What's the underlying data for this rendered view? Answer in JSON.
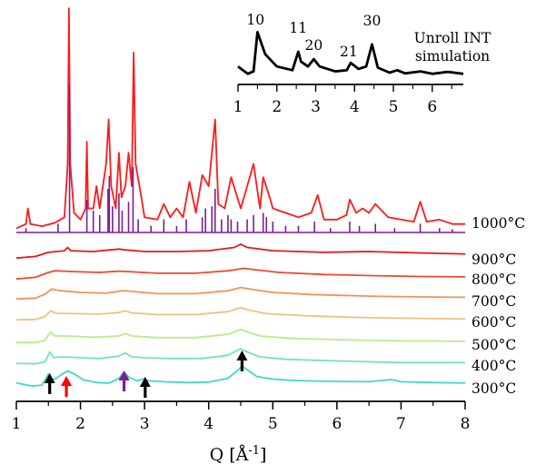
{
  "chart_data": {
    "type": "line",
    "xlabel_base": "Q [Å",
    "xlabel_sup": "-1",
    "xlabel_end": "]",
    "xlim": [
      1,
      8
    ],
    "xticks": [
      1,
      2,
      3,
      4,
      5,
      6,
      7,
      8
    ],
    "grid": false,
    "series": [
      {
        "name": "300°C",
        "color": "#3fd8c9",
        "points": [
          [
            1,
            0.55
          ],
          [
            1.25,
            0.2
          ],
          [
            1.4,
            0.3
          ],
          [
            1.5,
            1.6
          ],
          [
            1.56,
            0.9
          ],
          [
            1.62,
            1.1
          ],
          [
            1.72,
            1.6
          ],
          [
            1.8,
            1.95
          ],
          [
            1.9,
            1.6
          ],
          [
            2.05,
            0.9
          ],
          [
            2.25,
            0.6
          ],
          [
            2.45,
            0.55
          ],
          [
            2.6,
            1.1
          ],
          [
            2.68,
            1.8
          ],
          [
            2.76,
            1.2
          ],
          [
            2.88,
            0.8
          ],
          [
            3.0,
            1.05
          ],
          [
            3.05,
            0.8
          ],
          [
            3.3,
            0.7
          ],
          [
            3.7,
            0.6
          ],
          [
            4.0,
            0.65
          ],
          [
            4.3,
            1.1
          ],
          [
            4.45,
            2.0
          ],
          [
            4.52,
            2.5
          ],
          [
            4.6,
            2.1
          ],
          [
            4.75,
            1.3
          ],
          [
            5.0,
            1.0
          ],
          [
            5.3,
            0.85
          ],
          [
            5.8,
            0.75
          ],
          [
            6.5,
            0.7
          ],
          [
            6.85,
            0.95
          ],
          [
            7.0,
            0.7
          ],
          [
            7.5,
            0.6
          ],
          [
            8.0,
            0.55
          ]
        ]
      },
      {
        "name": "400°C",
        "color": "#72e6ad",
        "points": [
          [
            1,
            0.2
          ],
          [
            1.3,
            0.15
          ],
          [
            1.45,
            0.4
          ],
          [
            1.52,
            1.6
          ],
          [
            1.58,
            0.9
          ],
          [
            1.7,
            1.0
          ],
          [
            2.0,
            0.9
          ],
          [
            2.3,
            0.8
          ],
          [
            2.6,
            1.1
          ],
          [
            2.7,
            1.5
          ],
          [
            2.8,
            1.0
          ],
          [
            3.0,
            0.9
          ],
          [
            3.4,
            0.8
          ],
          [
            3.9,
            0.8
          ],
          [
            4.3,
            1.2
          ],
          [
            4.5,
            2.0
          ],
          [
            4.6,
            1.6
          ],
          [
            4.8,
            1.0
          ],
          [
            5.2,
            0.7
          ],
          [
            6.0,
            0.5
          ],
          [
            7.0,
            0.3
          ],
          [
            8.0,
            0.3
          ]
        ]
      },
      {
        "name": "500°C",
        "color": "#b7ec8c",
        "points": [
          [
            1,
            0.2
          ],
          [
            1.3,
            0.2
          ],
          [
            1.45,
            0.5
          ],
          [
            1.53,
            1.5
          ],
          [
            1.6,
            1.0
          ],
          [
            1.8,
            1.0
          ],
          [
            2.2,
            0.85
          ],
          [
            2.6,
            1.0
          ],
          [
            2.7,
            1.3
          ],
          [
            2.8,
            1.0
          ],
          [
            3.2,
            0.8
          ],
          [
            3.8,
            0.8
          ],
          [
            4.3,
            1.2
          ],
          [
            4.5,
            1.8
          ],
          [
            4.6,
            1.5
          ],
          [
            4.8,
            1.0
          ],
          [
            5.3,
            0.7
          ],
          [
            6.0,
            0.55
          ],
          [
            7.0,
            0.4
          ],
          [
            8.0,
            0.35
          ]
        ]
      },
      {
        "name": "600°C",
        "color": "#f3c07a",
        "points": [
          [
            1,
            0.2
          ],
          [
            1.3,
            0.25
          ],
          [
            1.45,
            0.6
          ],
          [
            1.53,
            1.3
          ],
          [
            1.62,
            1.0
          ],
          [
            1.9,
            0.95
          ],
          [
            2.3,
            0.9
          ],
          [
            2.6,
            1.1
          ],
          [
            2.7,
            1.3
          ],
          [
            2.8,
            1.05
          ],
          [
            3.2,
            0.85
          ],
          [
            3.8,
            0.85
          ],
          [
            4.3,
            1.2
          ],
          [
            4.5,
            1.7
          ],
          [
            4.62,
            1.4
          ],
          [
            4.9,
            0.95
          ],
          [
            5.5,
            0.7
          ],
          [
            6.3,
            0.5
          ],
          [
            7.0,
            0.4
          ],
          [
            8.0,
            0.3
          ]
        ]
      },
      {
        "name": "700°C",
        "color": "#f59159",
        "points": [
          [
            1,
            0.2
          ],
          [
            1.3,
            0.3
          ],
          [
            1.45,
            0.8
          ],
          [
            1.55,
            1.4
          ],
          [
            1.7,
            1.2
          ],
          [
            2.0,
            1.0
          ],
          [
            2.4,
            0.9
          ],
          [
            2.65,
            1.2
          ],
          [
            2.75,
            1.15
          ],
          [
            3.2,
            0.85
          ],
          [
            3.8,
            0.85
          ],
          [
            4.3,
            1.2
          ],
          [
            4.5,
            1.6
          ],
          [
            4.65,
            1.4
          ],
          [
            5.0,
            1.0
          ],
          [
            5.6,
            0.75
          ],
          [
            6.5,
            0.55
          ],
          [
            7.2,
            0.45
          ],
          [
            8.0,
            0.4
          ]
        ]
      },
      {
        "name": "800°C",
        "color": "#ec4a2e",
        "points": [
          [
            1,
            0.2
          ],
          [
            1.3,
            0.4
          ],
          [
            1.5,
            1.0
          ],
          [
            1.6,
            1.2
          ],
          [
            1.9,
            1.1
          ],
          [
            2.3,
            1.0
          ],
          [
            2.6,
            1.15
          ],
          [
            2.75,
            1.1
          ],
          [
            3.2,
            0.9
          ],
          [
            3.8,
            0.9
          ],
          [
            4.3,
            1.2
          ],
          [
            4.55,
            1.5
          ],
          [
            4.7,
            1.35
          ],
          [
            5.1,
            1.0
          ],
          [
            5.8,
            0.75
          ],
          [
            6.6,
            0.6
          ],
          [
            7.3,
            0.5
          ],
          [
            8.0,
            0.45
          ]
        ]
      },
      {
        "name": "900°C",
        "color": "#e01b17",
        "points": [
          [
            1,
            0.2
          ],
          [
            1.3,
            0.4
          ],
          [
            1.5,
            0.9
          ],
          [
            1.75,
            1.1
          ],
          [
            1.8,
            1.5
          ],
          [
            1.85,
            1.1
          ],
          [
            2.2,
            1.0
          ],
          [
            2.6,
            1.3
          ],
          [
            2.7,
            1.2
          ],
          [
            3.0,
            1.0
          ],
          [
            3.5,
            1.0
          ],
          [
            4.0,
            1.1
          ],
          [
            4.4,
            1.5
          ],
          [
            4.5,
            1.9
          ],
          [
            4.6,
            1.5
          ],
          [
            5.0,
            1.1
          ],
          [
            5.8,
            0.9
          ],
          [
            6.5,
            1.0
          ],
          [
            7.2,
            0.85
          ],
          [
            8.0,
            0.7
          ]
        ]
      },
      {
        "name": "1000°C",
        "color": "#ff1a1a",
        "points": [
          [
            1,
            0.1
          ],
          [
            1.15,
            0.3
          ],
          [
            1.18,
            1.0
          ],
          [
            1.22,
            0.3
          ],
          [
            1.4,
            0.2
          ],
          [
            1.6,
            0.35
          ],
          [
            1.75,
            0.6
          ],
          [
            1.8,
            3.0
          ],
          [
            1.82,
            10.0
          ],
          [
            1.84,
            3.0
          ],
          [
            1.9,
            0.8
          ],
          [
            2.0,
            0.5
          ],
          [
            2.08,
            1.0
          ],
          [
            2.1,
            4.0
          ],
          [
            2.12,
            1.0
          ],
          [
            2.2,
            1.0
          ],
          [
            2.25,
            2.0
          ],
          [
            2.3,
            1.0
          ],
          [
            2.4,
            3.0
          ],
          [
            2.44,
            5.0
          ],
          [
            2.48,
            2.0
          ],
          [
            2.55,
            1.0
          ],
          [
            2.6,
            3.5
          ],
          [
            2.64,
            1.5
          ],
          [
            2.7,
            2.0
          ],
          [
            2.75,
            3.5
          ],
          [
            2.8,
            2.0
          ],
          [
            2.83,
            8.0
          ],
          [
            2.86,
            3.0
          ],
          [
            2.95,
            1.5
          ],
          [
            3.0,
            0.6
          ],
          [
            3.2,
            0.5
          ],
          [
            3.3,
            1.2
          ],
          [
            3.4,
            0.6
          ],
          [
            3.5,
            1.0
          ],
          [
            3.6,
            0.6
          ],
          [
            3.7,
            2.2
          ],
          [
            3.8,
            0.8
          ],
          [
            3.9,
            2.5
          ],
          [
            4.0,
            2.0
          ],
          [
            4.1,
            5.0
          ],
          [
            4.15,
            1.2
          ],
          [
            4.25,
            1.0
          ],
          [
            4.35,
            2.4
          ],
          [
            4.5,
            1.0
          ],
          [
            4.6,
            2.0
          ],
          [
            4.7,
            3.0
          ],
          [
            4.8,
            1.0
          ],
          [
            4.85,
            2.4
          ],
          [
            4.95,
            1.5
          ],
          [
            5.0,
            1.0
          ],
          [
            5.2,
            0.8
          ],
          [
            5.4,
            0.6
          ],
          [
            5.6,
            0.8
          ],
          [
            5.7,
            1.6
          ],
          [
            5.8,
            0.5
          ],
          [
            6.0,
            0.5
          ],
          [
            6.15,
            0.7
          ],
          [
            6.2,
            1.4
          ],
          [
            6.3,
            0.8
          ],
          [
            6.4,
            1.0
          ],
          [
            6.5,
            0.8
          ],
          [
            6.6,
            1.2
          ],
          [
            6.8,
            0.6
          ],
          [
            7.0,
            0.5
          ],
          [
            7.2,
            0.4
          ],
          [
            7.3,
            1.3
          ],
          [
            7.4,
            0.4
          ],
          [
            7.6,
            0.5
          ],
          [
            7.8,
            0.3
          ],
          [
            8.0,
            0.3
          ]
        ]
      }
    ],
    "sticks": {
      "color": "#7a1f93",
      "points": [
        [
          1.15,
          0.2
        ],
        [
          1.83,
          6.8
        ],
        [
          1.65,
          0.4
        ],
        [
          2.1,
          1.5
        ],
        [
          2.2,
          1.0
        ],
        [
          2.3,
          0.8
        ],
        [
          2.43,
          2.0
        ],
        [
          2.45,
          2.6
        ],
        [
          2.5,
          1.2
        ],
        [
          2.6,
          1.8
        ],
        [
          2.65,
          1.0
        ],
        [
          2.75,
          1.4
        ],
        [
          2.82,
          3.0
        ],
        [
          2.9,
          0.6
        ],
        [
          3.1,
          0.3
        ],
        [
          3.3,
          0.6
        ],
        [
          3.5,
          0.3
        ],
        [
          3.65,
          0.6
        ],
        [
          3.9,
          0.7
        ],
        [
          3.95,
          1.1
        ],
        [
          4.05,
          1.2
        ],
        [
          4.1,
          2.0
        ],
        [
          4.2,
          0.6
        ],
        [
          4.3,
          0.8
        ],
        [
          4.35,
          0.6
        ],
        [
          4.45,
          0.5
        ],
        [
          4.6,
          0.6
        ],
        [
          4.7,
          0.8
        ],
        [
          4.85,
          0.9
        ],
        [
          4.9,
          0.7
        ],
        [
          5.0,
          0.5
        ],
        [
          5.2,
          0.3
        ],
        [
          5.4,
          0.3
        ],
        [
          5.65,
          0.5
        ],
        [
          5.9,
          0.2
        ],
        [
          6.2,
          0.5
        ],
        [
          6.35,
          0.3
        ],
        [
          6.6,
          0.4
        ],
        [
          6.9,
          0.2
        ],
        [
          7.3,
          0.4
        ],
        [
          7.6,
          0.2
        ],
        [
          7.8,
          0.15
        ]
      ]
    },
    "arrows": [
      {
        "x": 1.52,
        "color": "#000000"
      },
      {
        "x": 1.78,
        "color": "#ff0000"
      },
      {
        "x": 2.68,
        "color": "#7a1f93"
      },
      {
        "x": 3.01,
        "color": "#000000"
      },
      {
        "x": 4.52,
        "color": "#000000"
      }
    ],
    "inset": {
      "text_line1": "Unroll INT",
      "text_line2": "simulation",
      "xlim": [
        1,
        6.8
      ],
      "xticks": [
        1,
        2,
        3,
        4,
        5,
        6
      ],
      "series": {
        "color": "#000000",
        "points": [
          [
            1,
            0.4
          ],
          [
            1.25,
            0.1
          ],
          [
            1.4,
            0.2
          ],
          [
            1.5,
            1.8
          ],
          [
            1.7,
            0.9
          ],
          [
            2.0,
            0.4
          ],
          [
            2.4,
            0.25
          ],
          [
            2.55,
            1.0
          ],
          [
            2.62,
            0.6
          ],
          [
            2.8,
            0.4
          ],
          [
            2.95,
            0.7
          ],
          [
            3.1,
            0.4
          ],
          [
            3.5,
            0.2
          ],
          [
            3.8,
            0.25
          ],
          [
            3.9,
            0.55
          ],
          [
            4.1,
            0.3
          ],
          [
            4.3,
            0.4
          ],
          [
            4.45,
            1.3
          ],
          [
            4.6,
            0.35
          ],
          [
            4.9,
            0.15
          ],
          [
            5.1,
            0.25
          ],
          [
            5.3,
            0.12
          ],
          [
            5.7,
            0.2
          ],
          [
            6.0,
            0.1
          ],
          [
            6.4,
            0.18
          ],
          [
            6.8,
            0.1
          ]
        ]
      },
      "peak_labels": [
        {
          "x": 1.45,
          "text": "10"
        },
        {
          "x": 2.55,
          "text": "11"
        },
        {
          "x": 2.95,
          "text": "20"
        },
        {
          "x": 3.85,
          "text": "21"
        },
        {
          "x": 4.45,
          "text": "30"
        }
      ]
    }
  }
}
